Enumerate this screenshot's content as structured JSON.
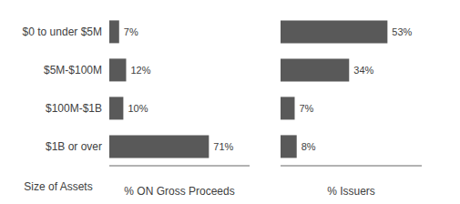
{
  "chart_data": [
    {
      "type": "bar",
      "orientation": "horizontal",
      "categories": [
        "$0 to under $5M",
        "$5M-$100M",
        "$100M-$1B",
        "$1B or over"
      ],
      "values": [
        7,
        12,
        10,
        71
      ],
      "value_labels": [
        "7%",
        "12%",
        "10%",
        "71%"
      ],
      "data_labels": true,
      "color": "#595959",
      "xlim": [
        0,
        100
      ],
      "xlabel": "% ON Gross Proceeds",
      "ylabel": "Size of Assets",
      "tick_labels": "y",
      "grid": false
    },
    {
      "type": "bar",
      "orientation": "horizontal",
      "categories": [
        "$0 to under $5M",
        "$5M-$100M",
        "$100M-$1B",
        "$1B or over"
      ],
      "values": [
        53,
        34,
        7,
        8
      ],
      "value_labels": [
        "53%",
        "34%",
        "7%",
        "8%"
      ],
      "data_labels": true,
      "color": "#595959",
      "xlim": [
        0,
        70
      ],
      "xlabel": "% Issuers",
      "tick_labels": false,
      "grid": false
    }
  ]
}
